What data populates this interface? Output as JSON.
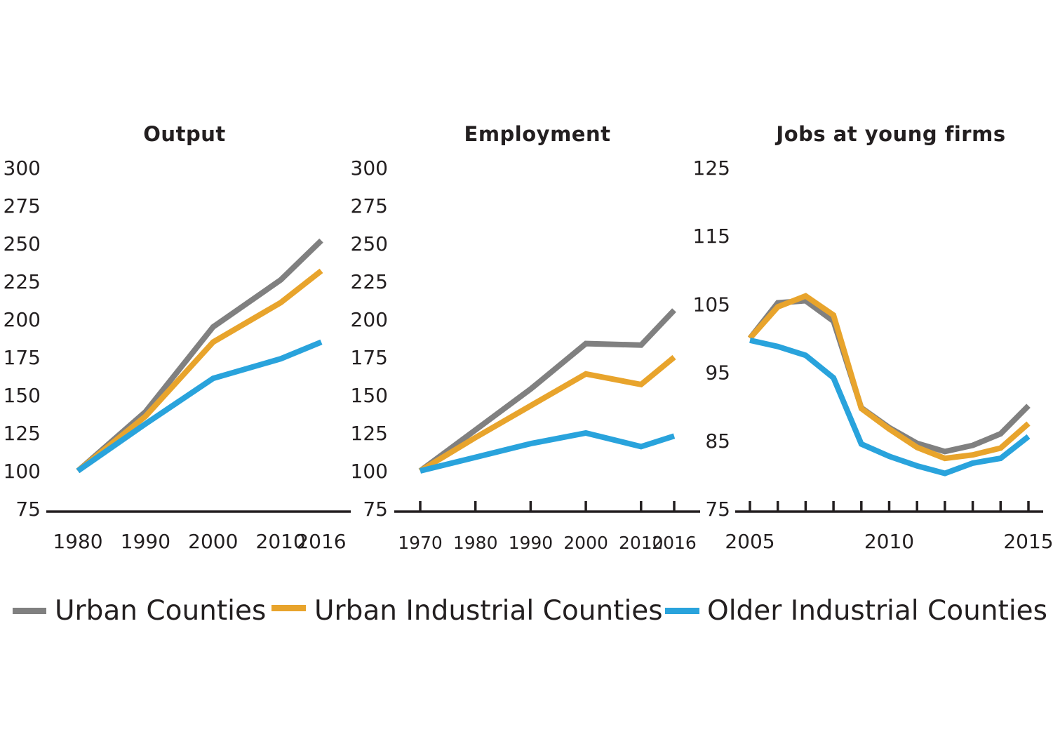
{
  "chart_data": [
    {
      "type": "line",
      "title": "Output",
      "xlabel": "",
      "ylabel": "",
      "yticks": [
        75,
        100,
        125,
        150,
        175,
        200,
        225,
        250,
        275,
        300
      ],
      "ylim": [
        75,
        300
      ],
      "xticks": [
        1980,
        1990,
        2000,
        2010,
        2016
      ],
      "xlim": [
        1980,
        2016
      ],
      "tick_marks": false,
      "grid": false,
      "series": [
        {
          "name": "Urban Counties",
          "color": "#808080",
          "x": [
            1980,
            1990,
            2000,
            2010,
            2016
          ],
          "y": [
            100,
            139,
            195,
            226,
            252
          ]
        },
        {
          "name": "Urban Industrial Counties",
          "color": "#e8a42c",
          "x": [
            1980,
            1990,
            2000,
            2010,
            2016
          ],
          "y": [
            100,
            136,
            185,
            211,
            232
          ]
        },
        {
          "name": "Older Industrial Counties",
          "color": "#29a3dc",
          "x": [
            1980,
            1990,
            2000,
            2010,
            2016
          ],
          "y": [
            100,
            131,
            161,
            174,
            185
          ]
        }
      ]
    },
    {
      "type": "line",
      "title": "Employment",
      "xlabel": "",
      "ylabel": "",
      "yticks": [
        75,
        100,
        125,
        150,
        175,
        200,
        225,
        250,
        275,
        300
      ],
      "ylim": [
        75,
        300
      ],
      "xticks": [
        1970,
        1980,
        1990,
        2000,
        2010,
        2016
      ],
      "xlim": [
        1970,
        2016
      ],
      "tick_marks": true,
      "grid": false,
      "series": [
        {
          "name": "Urban Counties",
          "color": "#808080",
          "x": [
            1970,
            1980,
            1990,
            2000,
            2010,
            2016
          ],
          "y": [
            100,
            127,
            154,
            184,
            183,
            206
          ]
        },
        {
          "name": "Urban Industrial Counties",
          "color": "#e8a42c",
          "x": [
            1970,
            1980,
            1990,
            2000,
            2010,
            2016
          ],
          "y": [
            100,
            122,
            143,
            164,
            157,
            175
          ]
        },
        {
          "name": "Older Industrial Counties",
          "color": "#29a3dc",
          "x": [
            1970,
            1980,
            1990,
            2000,
            2010,
            2016
          ],
          "y": [
            100,
            109,
            118,
            125,
            116,
            123
          ]
        }
      ]
    },
    {
      "type": "line",
      "title": "Jobs at young firms",
      "xlabel": "",
      "ylabel": "",
      "yticks": [
        75,
        85,
        95,
        105,
        115,
        125
      ],
      "ylim": [
        75,
        125
      ],
      "xticks": [
        2005,
        2010,
        2015
      ],
      "xlim": [
        2005,
        2015
      ],
      "tick_marks": true,
      "tick_marks_x": [
        2005,
        2006,
        2007,
        2008,
        2009,
        2010,
        2011,
        2012,
        2013,
        2014,
        2015
      ],
      "grid": false,
      "series": [
        {
          "name": "Urban Counties",
          "color": "#808080",
          "x": [
            2005,
            2006,
            2007,
            2008,
            2009,
            2010,
            2011,
            2012,
            2013,
            2014,
            2015
          ],
          "y": [
            100,
            105.2,
            105.5,
            102.5,
            89.8,
            86.9,
            84.6,
            83.4,
            84.3,
            86,
            90.1
          ]
        },
        {
          "name": "Urban Industrial Counties",
          "color": "#e8a42c",
          "x": [
            2005,
            2006,
            2007,
            2008,
            2009,
            2010,
            2011,
            2012,
            2013,
            2014,
            2015
          ],
          "y": [
            100,
            104.6,
            106.2,
            103.4,
            89.7,
            86.7,
            84,
            82.4,
            82.9,
            83.9,
            87.5
          ]
        },
        {
          "name": "Older Industrial Counties",
          "color": "#29a3dc",
          "x": [
            2005,
            2006,
            2007,
            2008,
            2009,
            2010,
            2011,
            2012,
            2013,
            2014,
            2015
          ],
          "y": [
            99.7,
            98.8,
            97.5,
            94.2,
            84.5,
            82.7,
            81.3,
            80.2,
            81.7,
            82.4,
            85.6
          ]
        }
      ]
    }
  ],
  "legend": {
    "placement": "bottom",
    "items": [
      {
        "label": "Urban Counties",
        "color": "#808080"
      },
      {
        "label": "Urban Industrial Counties",
        "color": "#e8a42c"
      },
      {
        "label": "Older Industrial Counties",
        "color": "#29a3dc"
      }
    ]
  }
}
